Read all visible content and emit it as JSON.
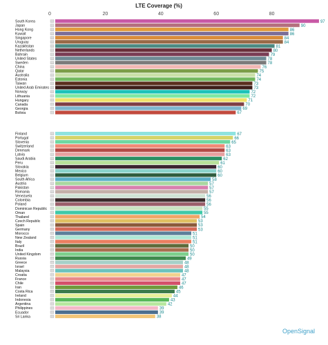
{
  "chart_data": {
    "type": "bar",
    "orientation": "horizontal",
    "title": "LTE Coverage (%)",
    "xlim": [
      0,
      100
    ],
    "x_ticks": [
      "0",
      "20",
      "40",
      "60",
      "80"
    ],
    "grid": false,
    "brand": "OpenSignal",
    "groups": [
      {
        "categories": [
          "South Korea",
          "Japan",
          "Hong Kong",
          "Kuwait",
          "Singapore",
          "Uruguay",
          "Kazakhstan",
          "Netherlands",
          "Bahrain",
          "United States",
          "Sweden",
          "China",
          "Qatar",
          "Australia",
          "Estonia",
          "Taiwan",
          "United Arab Emirates",
          "Norway",
          "Lithuania",
          "Hungary",
          "Canada",
          "Georgia",
          "Bolivia"
        ],
        "values": [
          97,
          90,
          86,
          86,
          84,
          84,
          81,
          80,
          79,
          78,
          78,
          76,
          75,
          74,
          74,
          73,
          73,
          72,
          72,
          71,
          70,
          69,
          67
        ],
        "colors": [
          "#c85aa6",
          "#b4707e",
          "#e09b3d",
          "#7c6e97",
          "#d98c3a",
          "#9a6a47",
          "#4c8b83",
          "#6a2f3b",
          "#7a3d55",
          "#6f8a95",
          "#7a7a7a",
          "#f2b8b4",
          "#7b9d48",
          "#c9e0a8",
          "#73b860",
          "#5a2e1e",
          "#3d1e1a",
          "#1cc2b9",
          "#7ee7a3",
          "#f1e36a",
          "#7e3f46",
          "#7db6cf",
          "#c24a3e"
        ]
      },
      {
        "categories": [
          "Finland",
          "Portugal",
          "Slovenia",
          "Switzerland",
          "Denmark",
          "Latvia",
          "Saudi Arabia",
          "Peru",
          "Slovakia",
          "Mexico",
          "Belgium",
          "South Africa",
          "Austria",
          "Pakistan",
          "Romania",
          "Venezuela",
          "Colombia",
          "Poland",
          "Dominican Republic",
          "Oman",
          "Thailand",
          "Czech Republic",
          "Spain",
          "Germany",
          "Morocco",
          "New Zealand",
          "Italy",
          "Brazil",
          "India",
          "United Kingdom",
          "Russia",
          "Greece",
          "Israel",
          "Malaysia",
          "Croatia",
          "France",
          "Chile",
          "Iran",
          "Costa Rica",
          "Ireland",
          "Indonesia",
          "Argentina",
          "Philippines",
          "Ecuador",
          "Sri Lanka"
        ],
        "values": [
          67,
          66,
          65,
          63,
          63,
          63,
          62,
          61,
          60,
          60,
          60,
          58,
          57,
          57,
          57,
          56,
          56,
          56,
          55,
          55,
          54,
          53,
          53,
          53,
          51,
          51,
          51,
          50,
          50,
          50,
          49,
          48,
          48,
          48,
          47,
          47,
          47,
          46,
          45,
          44,
          43,
          42,
          39,
          39,
          38
        ],
        "colors": [
          "#8ee3e0",
          "#d4d46a",
          "#6fd8a1",
          "#f08a76",
          "#b34a46",
          "#e6a0a0",
          "#2a8f63",
          "#b7e09a",
          "#3b2430",
          "#8ad3cc",
          "#2f5c3e",
          "#5bb0c9",
          "#a9d7a0",
          "#d87fae",
          "#c4b0a8",
          "#cfe3d4",
          "#3a2a2a",
          "#9a5f6a",
          "#c9e5c1",
          "#3ec9a8",
          "#f0a566",
          "#e0c060",
          "#8a5a3a",
          "#d56a58",
          "#5c7f9a",
          "#aee8d6",
          "#e97f60",
          "#5d6b3a",
          "#a86f4f",
          "#7dcf8c",
          "#3e8a4d",
          "#a6d0c8",
          "#e4a7a2",
          "#6ac3bd",
          "#f0d28e",
          "#e88a8a",
          "#d4506a",
          "#6f9a3c",
          "#3a7a4a",
          "#e8ef9a",
          "#58b85a",
          "#b8e8a0",
          "#f4b8c8",
          "#4d6f8f",
          "#f2c678"
        ]
      }
    ]
  }
}
